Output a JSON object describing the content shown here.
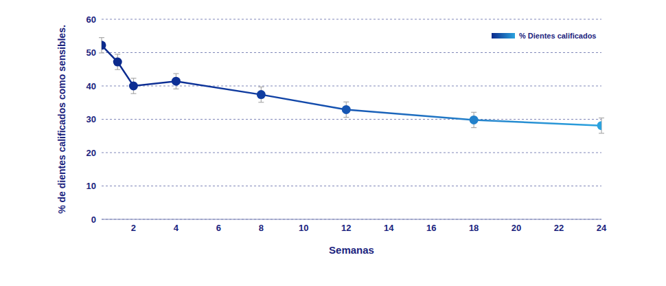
{
  "chart_data": {
    "type": "line",
    "x_label": "Semanas",
    "y_label": "% de dientes calificados como sensibles.",
    "x": [
      0.5,
      1.25,
      2,
      4,
      8,
      12,
      18,
      24
    ],
    "series": [
      {
        "name": "% Dientes calificados",
        "values": [
          52.2,
          47.2,
          40.0,
          41.4,
          37.4,
          32.9,
          29.8,
          28.1
        ],
        "errors": [
          2.3,
          2.3,
          2.3,
          2.3,
          2.3,
          2.3,
          2.3,
          2.3
        ],
        "colors": [
          "#0b2a8c",
          "#0b2a8c",
          "#0c2d92",
          "#0d3096",
          "#0f3da1",
          "#1656b3",
          "#2482cb",
          "#2ba2de"
        ],
        "marker": "circle",
        "line_style": "solid"
      }
    ],
    "xlim": [
      0.5,
      24
    ],
    "xticks": [
      2,
      4,
      6,
      8,
      10,
      12,
      14,
      16,
      18,
      20,
      22,
      24
    ],
    "ylim": [
      0,
      60
    ],
    "yticks": [
      0,
      10,
      20,
      30,
      40,
      50,
      60
    ],
    "grid": true,
    "legend": "top-right"
  }
}
